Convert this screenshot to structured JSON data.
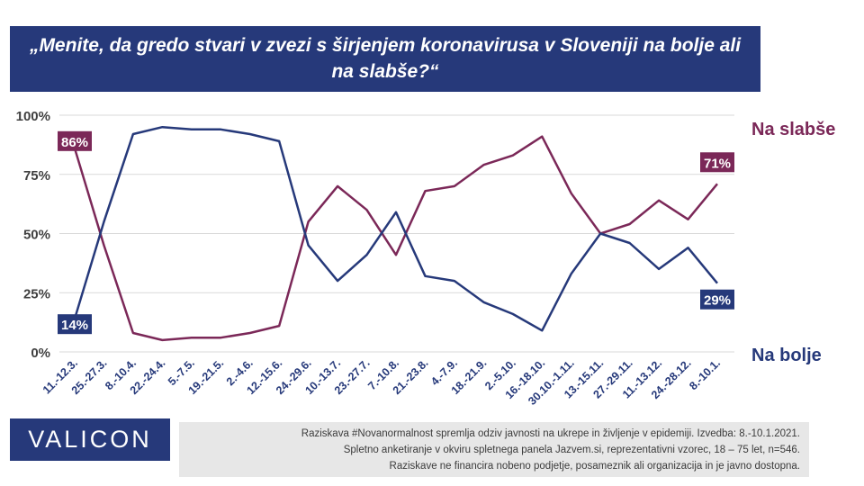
{
  "title": "„Menite, da gredo stvari v zvezi s širjenjem koronavirusa v Sloveniji na bolje ali na slabše?“",
  "logo": "VALICON",
  "footer": {
    "line1": "Raziskava #Novanormalnost spremlja odziv javnosti na ukrepe in življenje v epidemiji. Izvedba: 8.-10.1.2021.",
    "line2": "Spletno anketiranje v okviru spletnega panela Jazvem.si, reprezentativni vzorec, 18 – 75 let, n=546.",
    "line3": "Raziskave ne financira nobeno podjetje, posameznik ali organizacija in je javno dostopna."
  },
  "colors": {
    "navy": "#26397a",
    "maroon": "#7b2858",
    "grid": "#d9d9d9",
    "footer_bg": "#e7e7e7"
  },
  "chart_data": {
    "type": "line",
    "categories": [
      "11.-12.3.",
      "25.-27.3.",
      "8.-10.4.",
      "22.-24.4.",
      "5.-7.5.",
      "19.-21.5.",
      "2.-4.6.",
      "12.-15.6.",
      "24.-29.6.",
      "10.-13.7.",
      "23.-27.7.",
      "7.-10.8.",
      "21.-23.8.",
      "4.-7.9.",
      "18.-21.9.",
      "2.-5.10.",
      "16.-18.10.",
      "30.10.-1.11.",
      "13.-15.11.",
      "27.-29.11.",
      "11.-13.12.",
      "24.-28.12.",
      "8.-10.1."
    ],
    "y_ticks": [
      "0%",
      "25%",
      "50%",
      "75%",
      "100%"
    ],
    "ylim": [
      0,
      100
    ],
    "grid": true,
    "series": [
      {
        "name": "Na slabše",
        "color": "#7b2858",
        "values": [
          86,
          45,
          8,
          5,
          6,
          6,
          8,
          11,
          55,
          70,
          60,
          41,
          68,
          70,
          79,
          83,
          91,
          67,
          50,
          54,
          64,
          56,
          71
        ],
        "start_label": "86%",
        "end_label": "71%"
      },
      {
        "name": "Na bolje",
        "color": "#26397a",
        "values": [
          14,
          55,
          92,
          95,
          94,
          94,
          92,
          89,
          45,
          30,
          41,
          59,
          32,
          30,
          21,
          16,
          9,
          33,
          50,
          46,
          35,
          44,
          29
        ],
        "start_label": "14%",
        "end_label": "29%"
      }
    ]
  }
}
